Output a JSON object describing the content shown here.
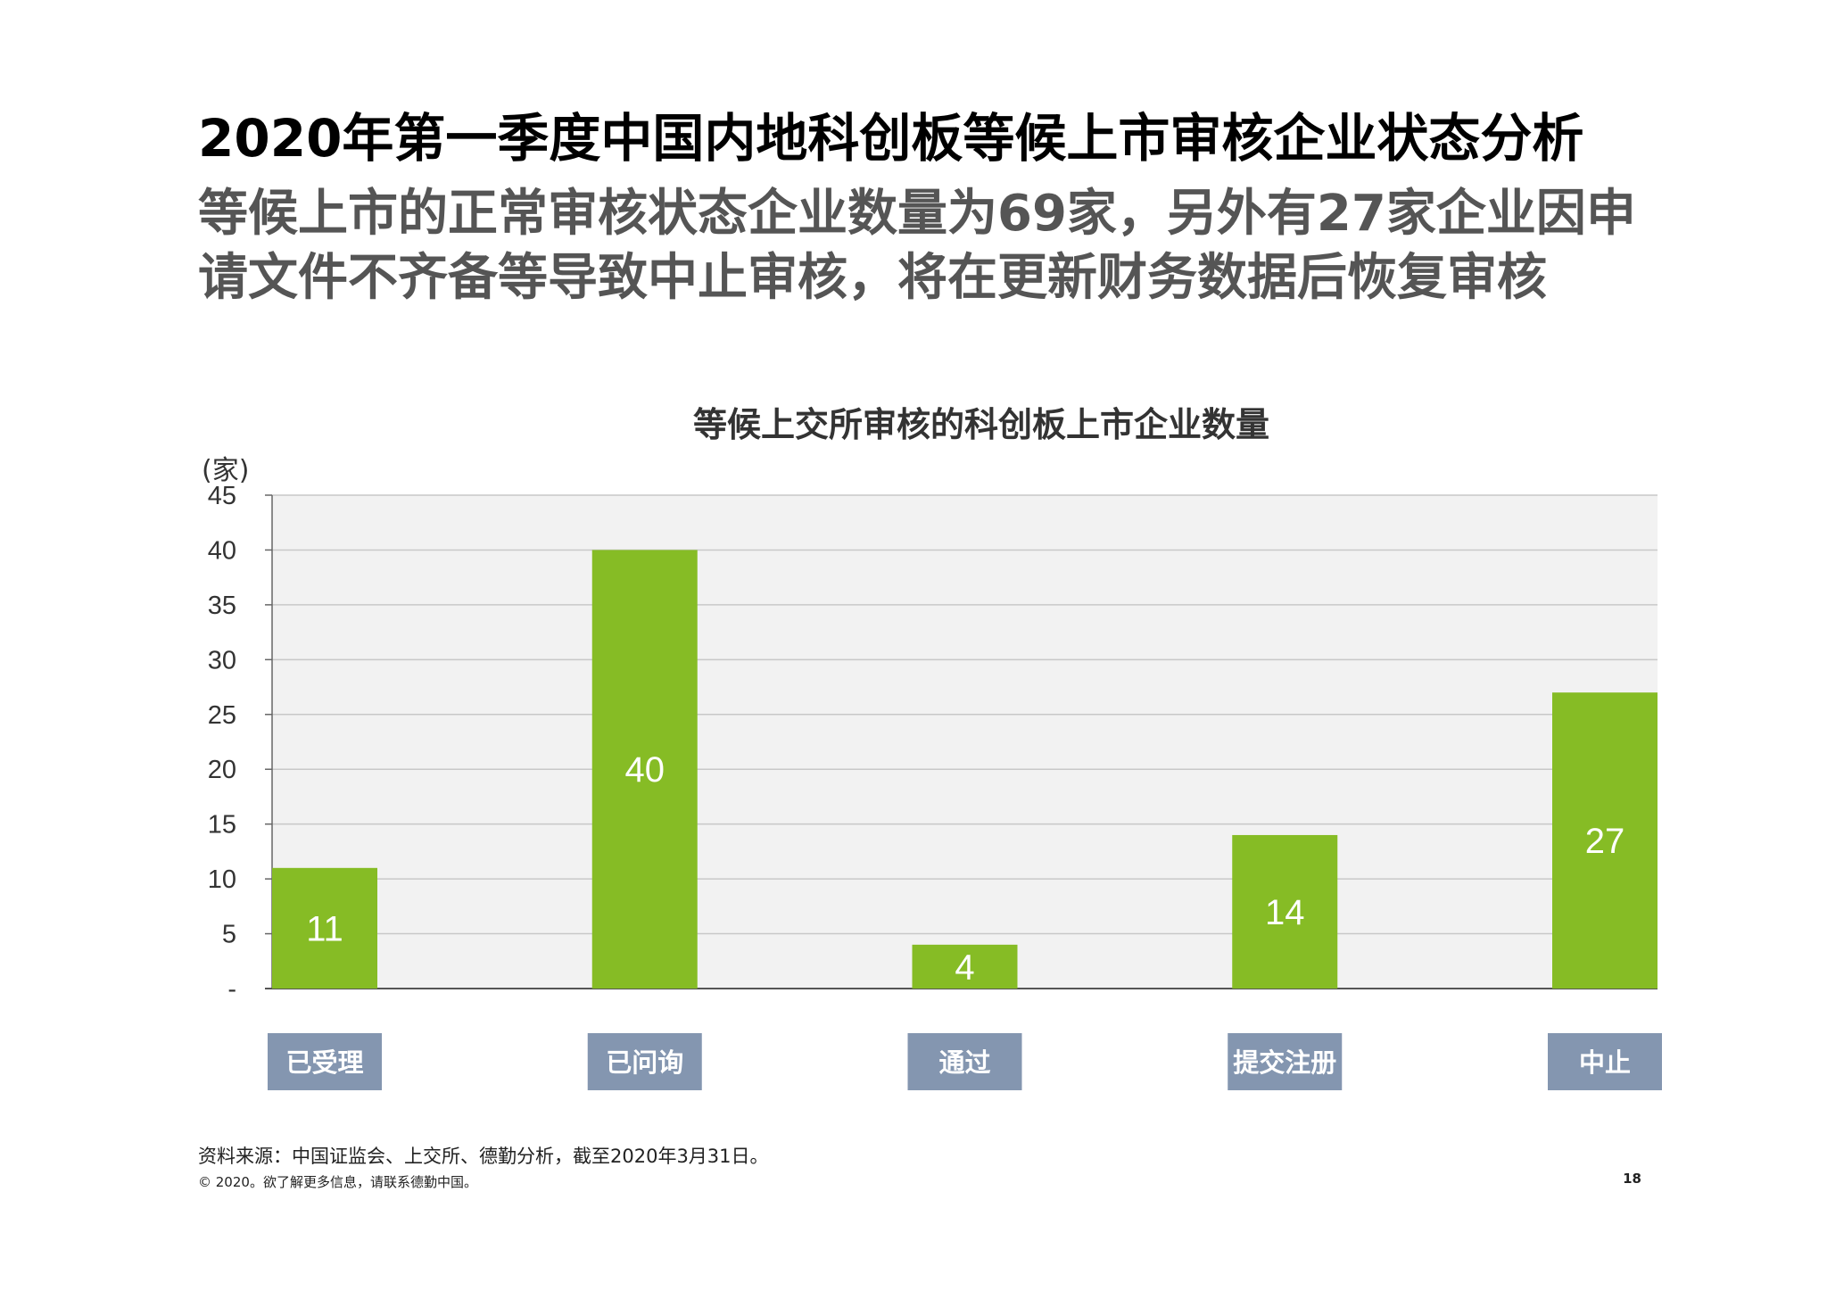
{
  "page": {
    "title": "2020年第一季度中国内地科创板等候上市审核企业状态分析",
    "subtitle": "等候上市的正常审核状态企业数量为69家，另外有27家企业因申请文件不齐备等导致中止审核，将在更新财务数据后恢复审核",
    "source": "资料来源：中国证监会、上交所、德勤分析，截至2020年3月31日。",
    "copyright": "© 2020。欲了解更多信息，请联系德勤中国。",
    "page_number": "18"
  },
  "chart_data": {
    "type": "bar",
    "title": "等候上交所审核的科创板上市企业数量",
    "ylabel": "(家)",
    "xlabel": "",
    "categories": [
      "已受理",
      "已问询",
      "通过",
      "提交注册",
      "中止"
    ],
    "values": [
      11,
      40,
      4,
      14,
      27
    ],
    "ylim": [
      0,
      45
    ],
    "yticks": [
      0,
      5,
      10,
      15,
      20,
      25,
      30,
      35,
      40,
      45
    ],
    "ytick_labels": [
      "-",
      "5",
      "10",
      "15",
      "20",
      "25",
      "30",
      "35",
      "40",
      "45"
    ],
    "grid": true,
    "colors": {
      "bar": "#86bc25",
      "plot_bg": "#f2f2f2",
      "grid": "#c8c8c8",
      "category_box": "#8496b0",
      "category_text": "#ffffff",
      "value_label": "#ffffff"
    }
  }
}
